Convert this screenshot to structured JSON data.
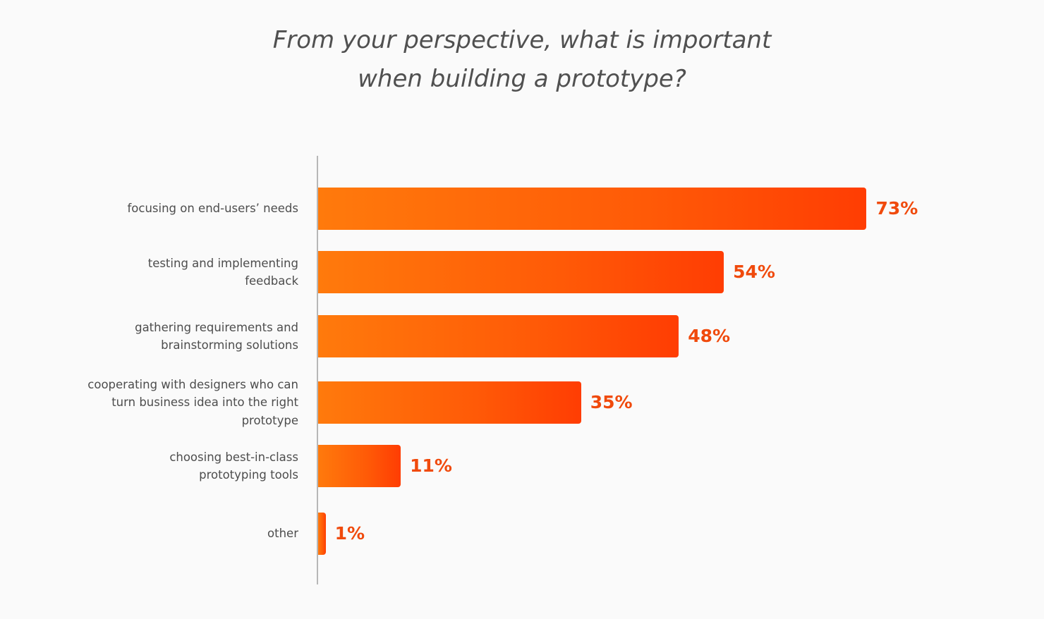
{
  "chart_data": {
    "type": "bar",
    "orientation": "horizontal",
    "title_lines": [
      "From your perspective, what is important",
      "when building a prototype?"
    ],
    "categories": [
      [
        "focusing on end-users’ needs"
      ],
      [
        "testing and implementing",
        "feedback"
      ],
      [
        "gathering requirements and",
        "brainstorming solutions"
      ],
      [
        "cooperating with designers who can",
        "turn business idea into the right",
        "prototype"
      ],
      [
        "choosing best-in-class",
        "prototyping tools"
      ],
      [
        "other"
      ]
    ],
    "values": [
      73,
      54,
      48,
      35,
      11,
      1
    ],
    "value_labels": [
      "73%",
      "54%",
      "48%",
      "35%",
      "11%",
      "1%"
    ],
    "value_unit": "%",
    "xlim": [
      0,
      100
    ],
    "grid": false,
    "legend": "none",
    "colors": {
      "bar_gradient_start": "#ff7a0c",
      "bar_gradient_end": "#ff3d03",
      "value_label": "#f04a0c",
      "category_label": "#4d4d4d",
      "title": "#505050",
      "axis": "#b7b7b7"
    }
  }
}
